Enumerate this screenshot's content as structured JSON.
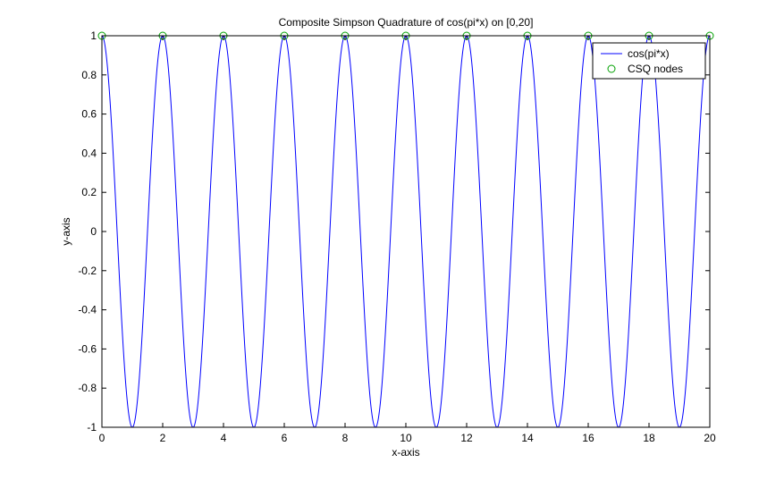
{
  "chart_data": {
    "type": "line",
    "title": "Composite Simpson Quadrature of cos(pi*x) on [0,20]",
    "xlabel": "x-axis",
    "ylabel": "y-axis",
    "xlim": [
      0,
      20
    ],
    "ylim": [
      -1,
      1
    ],
    "grid": false,
    "legend_position": "top-right",
    "xticks": [
      0,
      2,
      4,
      6,
      8,
      10,
      12,
      14,
      16,
      18,
      20
    ],
    "xtick_labels": [
      "0",
      "2",
      "4",
      "6",
      "8",
      "10",
      "12",
      "14",
      "16",
      "18",
      "20"
    ],
    "yticks": [
      -1,
      -0.8,
      -0.6,
      -0.4,
      -0.2,
      0,
      0.2,
      0.4,
      0.6,
      0.8,
      1
    ],
    "ytick_labels": [
      "-1",
      "-0.8",
      "-0.6",
      "-0.4",
      "-0.2",
      "0",
      "0.2",
      "0.4",
      "0.6",
      "0.8",
      "1"
    ],
    "series": [
      {
        "name": "cos(pi*x)",
        "kind": "line",
        "function": "cos(pi*x)",
        "color": "#0000ff"
      },
      {
        "name": "CSQ nodes",
        "kind": "markers",
        "marker": "circle",
        "color": "#00a000",
        "x": [
          0,
          2,
          4,
          6,
          8,
          10,
          12,
          14,
          16,
          18,
          20
        ],
        "y": [
          1,
          1,
          1,
          1,
          1,
          1,
          1,
          1,
          1,
          1,
          1
        ]
      }
    ]
  }
}
